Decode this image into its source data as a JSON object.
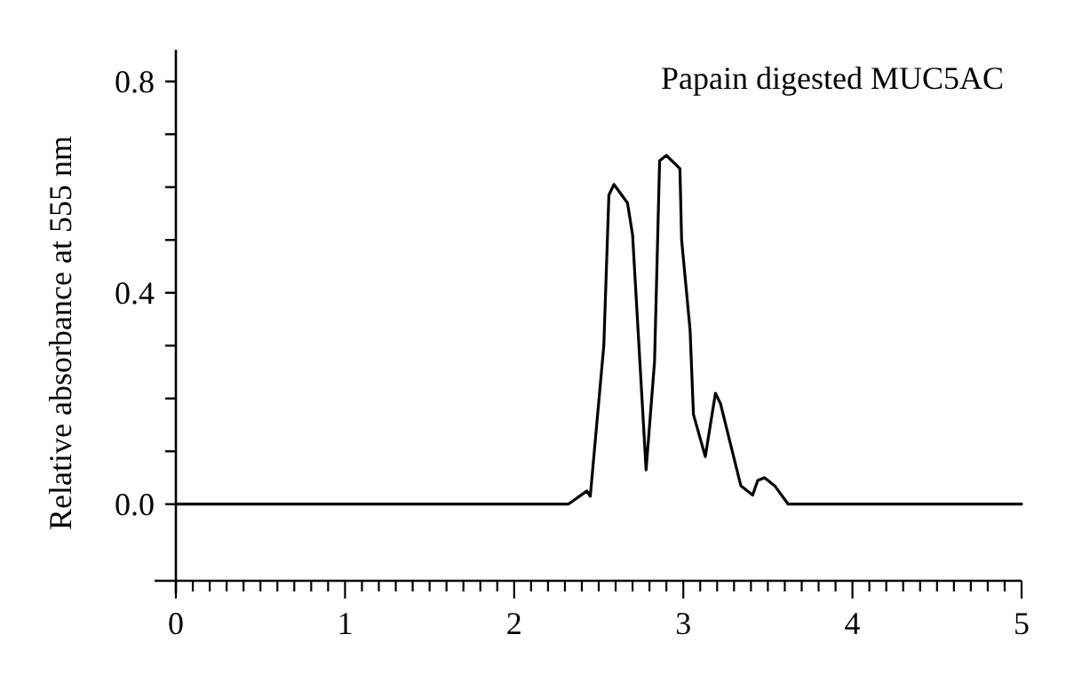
{
  "chart_data": {
    "type": "line",
    "ylabel": "Relative absorbance at 555 nm",
    "annotations": [
      "Papain digested MUC5AC"
    ],
    "xlim": [
      0,
      5
    ],
    "ylim": [
      -0.145,
      0.86
    ],
    "xticks": [
      0,
      {
        "value": 0.1,
        "label": null
      },
      {
        "value": 0.2,
        "label": null
      },
      {
        "value": 0.3,
        "label": null
      },
      {
        "value": 0.4,
        "label": null
      },
      {
        "value": 0.5,
        "label": null
      },
      {
        "value": 0.6,
        "label": null
      },
      {
        "value": 0.7,
        "label": null
      },
      {
        "value": 0.8,
        "label": null
      },
      {
        "value": 0.9,
        "label": null
      },
      1,
      {
        "value": 1.1,
        "label": null
      },
      {
        "value": 1.2,
        "label": null
      },
      {
        "value": 1.3,
        "label": null
      },
      {
        "value": 1.4,
        "label": null
      },
      {
        "value": 1.5,
        "label": null
      },
      {
        "value": 1.6,
        "label": null
      },
      {
        "value": 1.7,
        "label": null
      },
      {
        "value": 1.8,
        "label": null
      },
      {
        "value": 1.9,
        "label": null
      },
      2,
      {
        "value": 2.1,
        "label": null
      },
      {
        "value": 2.2,
        "label": null
      },
      {
        "value": 2.3,
        "label": null
      },
      {
        "value": 2.4,
        "label": null
      },
      {
        "value": 2.5,
        "label": null
      },
      {
        "value": 2.6,
        "label": null
      },
      {
        "value": 2.7,
        "label": null
      },
      {
        "value": 2.8,
        "label": null
      },
      {
        "value": 2.9,
        "label": null
      },
      3,
      {
        "value": 3.1,
        "label": null
      },
      {
        "value": 3.2,
        "label": null
      },
      {
        "value": 3.3,
        "label": null
      },
      {
        "value": 3.4,
        "label": null
      },
      {
        "value": 3.5,
        "label": null
      },
      {
        "value": 3.6,
        "label": null
      },
      {
        "value": 3.7,
        "label": null
      },
      {
        "value": 3.8,
        "label": null
      },
      {
        "value": 3.9,
        "label": null
      },
      4,
      {
        "value": 4.1,
        "label": null
      },
      {
        "value": 4.2,
        "label": null
      },
      {
        "value": 4.3,
        "label": null
      },
      {
        "value": 4.4,
        "label": null
      },
      {
        "value": 4.5,
        "label": null
      },
      {
        "value": 4.6,
        "label": null
      },
      {
        "value": 4.7,
        "label": null
      },
      {
        "value": 4.8,
        "label": null
      },
      {
        "value": 4.9,
        "label": null
      },
      5
    ],
    "yticks": [
      {
        "value": 0,
        "label": "0.0"
      },
      {
        "value": 0.1,
        "label": null
      },
      {
        "value": 0.2,
        "label": null
      },
      {
        "value": 0.3,
        "label": null
      },
      {
        "value": 0.4,
        "label": "0.4"
      },
      {
        "value": 0.5,
        "label": null
      },
      {
        "value": 0.6,
        "label": null
      },
      {
        "value": 0.7,
        "label": null
      },
      {
        "value": 0.8,
        "label": "0.8"
      }
    ],
    "grid": false,
    "marker": "none",
    "line_style": "solid",
    "series": [
      {
        "color": "#000000",
        "x": [
          0,
          2.32,
          2.43,
          2.45,
          2.53,
          2.56,
          2.59,
          2.67,
          2.7,
          2.78,
          2.83,
          2.86,
          2.9,
          2.98,
          2.99,
          3.04,
          3.06,
          3.13,
          3.19,
          3.22,
          3.34,
          3.41,
          3.44,
          3.48,
          3.54,
          3.62,
          5
        ],
        "values": [
          0,
          0,
          0.025,
          0.015,
          0.3,
          0.585,
          0.605,
          0.57,
          0.51,
          0.065,
          0.27,
          0.65,
          0.66,
          0.635,
          0.5,
          0.33,
          0.17,
          0.09,
          0.21,
          0.19,
          0.035,
          0.017,
          0.045,
          0.05,
          0.035,
          0,
          0
        ]
      }
    ]
  }
}
